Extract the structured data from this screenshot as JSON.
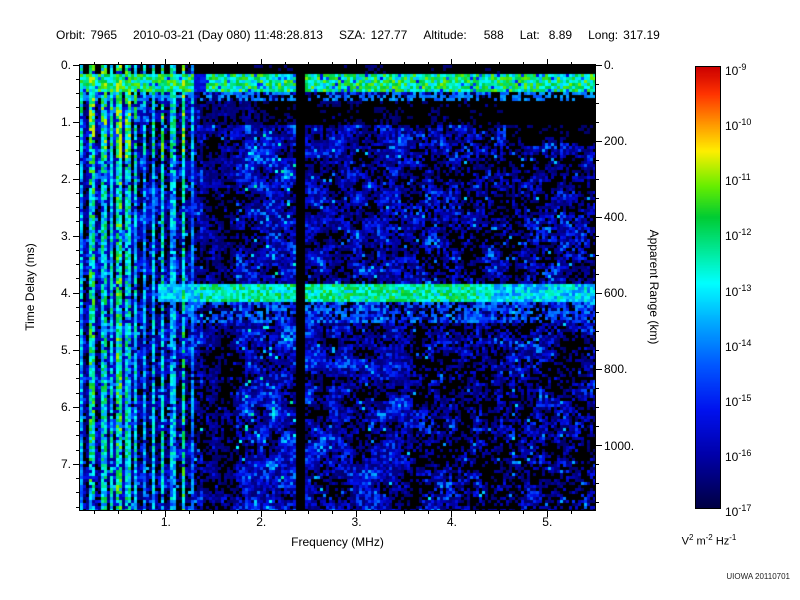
{
  "header": {
    "orbit": {
      "label": "Orbit:",
      "value": "7965"
    },
    "datetime": "2010-03-21 (Day 080) 11:48:28.813",
    "sza": {
      "label": "SZA:",
      "value": "127.77"
    },
    "altitude": {
      "label": "Altitude:",
      "value": "588"
    },
    "lat": {
      "label": "Lat:",
      "value": "8.89"
    },
    "long": {
      "label": "Long:",
      "value": "317.19"
    }
  },
  "chart_data": {
    "type": "heatmap",
    "description": "Radar sounder ionogram: spectral density vs frequency and time delay; black background with blue noise, bright ionospheric echo band near 0.3 ms, surface reflection band at 4 ms (600 km apparent range), electron plasma harmonic vertical striping below 1.3 MHz, dark absorption line at 2.4 MHz",
    "xlabel": "Frequency (MHz)",
    "ylabel_left": "Time Delay (ms)",
    "ylabel_right": "Apparent Range (km)",
    "x_range_mhz": [
      0.1,
      5.5
    ],
    "y_range_ms": [
      0.0,
      7.8
    ],
    "km_per_ms": 149.896,
    "x_ticks": [
      {
        "v": 1,
        "label": "1."
      },
      {
        "v": 2,
        "label": "2."
      },
      {
        "v": 3,
        "label": "3."
      },
      {
        "v": 4,
        "label": "4."
      },
      {
        "v": 5,
        "label": "5."
      }
    ],
    "y_ticks": [
      {
        "v": 0,
        "label": "0."
      },
      {
        "v": 1,
        "label": "1."
      },
      {
        "v": 2,
        "label": "2."
      },
      {
        "v": 3,
        "label": "3."
      },
      {
        "v": 4,
        "label": "4."
      },
      {
        "v": 5,
        "label": "5."
      },
      {
        "v": 6,
        "label": "6."
      },
      {
        "v": 7,
        "label": "7."
      }
    ],
    "right_ticks": [
      {
        "v": 0,
        "label": "0."
      },
      {
        "v": 200,
        "label": "200."
      },
      {
        "v": 400,
        "label": "400."
      },
      {
        "v": 600,
        "label": "600."
      },
      {
        "v": 800,
        "label": "800."
      },
      {
        "v": 1000,
        "label": "1000."
      }
    ],
    "colorbar": {
      "scale": "log",
      "range_top": "1e-9",
      "range_bottom": "1e-17",
      "tick_exponents": [
        -9,
        -10,
        -11,
        -12,
        -13,
        -14,
        -15,
        -16,
        -17
      ],
      "unit_parts": [
        {
          "t": "V",
          "sup": "2"
        },
        {
          "t": " m",
          "sup": "-2"
        },
        {
          "t": " Hz",
          "sup": "-1"
        }
      ],
      "stops": [
        {
          "p": 0.0,
          "c": "#cc0000"
        },
        {
          "p": 0.06,
          "c": "#ff3300"
        },
        {
          "p": 0.13,
          "c": "#ff9900"
        },
        {
          "p": 0.19,
          "c": "#ffee00"
        },
        {
          "p": 0.27,
          "c": "#66ee00"
        },
        {
          "p": 0.34,
          "c": "#00cc33"
        },
        {
          "p": 0.43,
          "c": "#00eeaa"
        },
        {
          "p": 0.49,
          "c": "#00ffff"
        },
        {
          "p": 0.58,
          "c": "#00aaff"
        },
        {
          "p": 0.68,
          "c": "#0055ff"
        },
        {
          "p": 0.78,
          "c": "#0011ee"
        },
        {
          "p": 0.88,
          "c": "#0000aa"
        },
        {
          "p": 1.0,
          "c": "#000044"
        }
      ]
    },
    "features": {
      "background_color": "#000000",
      "ionospheric_echo_band": {
        "time_delay_ms": 0.3
      },
      "surface_reflection": {
        "time_delay_ms": 4.0,
        "apparent_range_km": 600,
        "freq_start_mhz": 0.9
      },
      "harmonic_striping": {
        "freq_max_mhz": 1.32
      },
      "absorption_line_mhz": 2.4
    }
  },
  "credit": "UIOWA 20110701"
}
